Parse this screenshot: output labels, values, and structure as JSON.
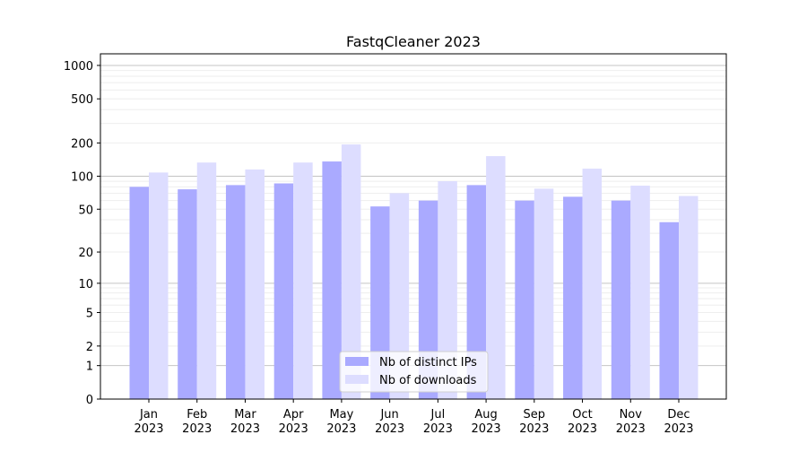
{
  "chart_data": {
    "type": "bar",
    "title": "FastqCleaner 2023",
    "xlabel": "",
    "ylabel": "",
    "yscale": "log1p",
    "ylim": [
      0,
      1272
    ],
    "yticks": [
      0,
      1,
      2,
      5,
      10,
      20,
      50,
      100,
      200,
      500,
      1000
    ],
    "grid": true,
    "legend_position": "bottom-center",
    "categories": [
      "Jan\n2023",
      "Feb\n2023",
      "Mar\n2023",
      "Apr\n2023",
      "May\n2023",
      "Jun\n2023",
      "Jul\n2023",
      "Aug\n2023",
      "Sep\n2023",
      "Oct\n2023",
      "Nov\n2023",
      "Dec\n2023"
    ],
    "series": [
      {
        "name": "Nb of distinct IPs",
        "color": "#aaaaff",
        "values": [
          80,
          76,
          83,
          86,
          136,
          53,
          60,
          83,
          60,
          65,
          60,
          38
        ]
      },
      {
        "name": "Nb of downloads",
        "color": "#ddddff",
        "values": [
          108,
          133,
          115,
          133,
          194,
          70,
          90,
          152,
          77,
          117,
          82,
          66
        ]
      }
    ]
  }
}
